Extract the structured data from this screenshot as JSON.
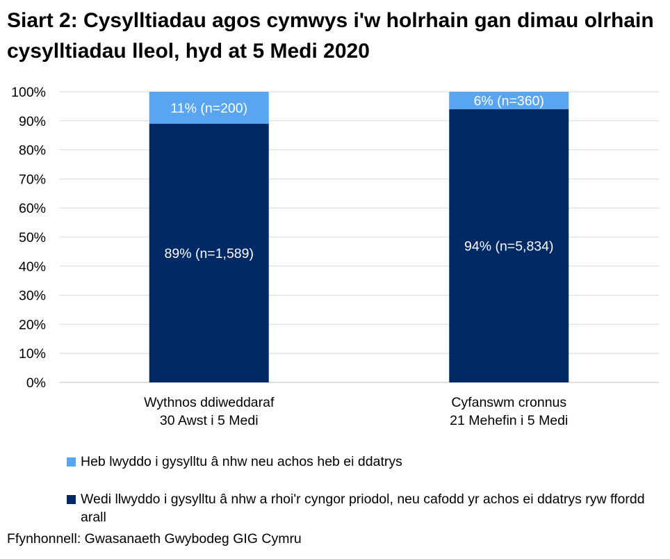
{
  "chart_data": {
    "type": "bar",
    "stacked": true,
    "title": "Siart 2: Cysylltiadau agos cymwys i'w holrhain gan dimau olrhain cysylltiadau lleol, hyd at 5 Medi 2020",
    "categories": [
      [
        "Wythnos ddiweddaraf",
        "30 Awst i 5 Medi"
      ],
      [
        "Cyfanswm cronnus",
        "21 Mehefin i 5 Medi"
      ]
    ],
    "series": [
      {
        "name": "Wedi llwyddo i gysylltu â nhw a rhoi'r cyngor priodol, neu cafodd yr achos ei ddatrys ryw ffordd arall",
        "values": [
          89,
          94
        ],
        "labels": [
          "89% (n=1,589)",
          "94% (n=5,834)"
        ],
        "color": "#002966"
      },
      {
        "name": "Heb lwyddo i gysylltu â nhw neu achos heb ei ddatrys",
        "values": [
          11,
          6
        ],
        "labels": [
          "11% (n=200)",
          "6% (n=360)"
        ],
        "color": "#5aa5f2"
      }
    ],
    "ylim": [
      0,
      100
    ],
    "yticks": [
      0,
      10,
      20,
      30,
      40,
      50,
      60,
      70,
      80,
      90,
      100
    ],
    "ytick_suffix": "%",
    "grid": true,
    "legend_position": "bottom",
    "source": "Ffynhonnell: Gwasanaeth Gwybodeg GIG Cymru"
  }
}
